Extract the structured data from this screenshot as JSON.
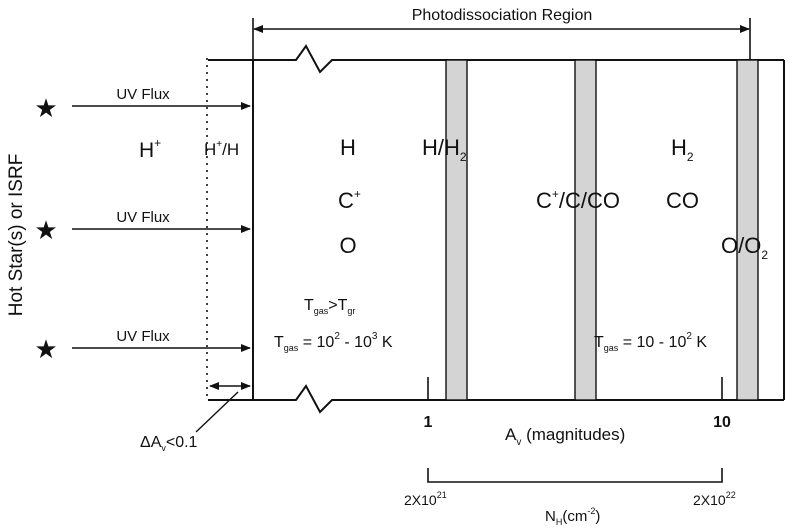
{
  "title": "Photodissociation Region",
  "side_label": "Hot Star(s) or ISRF",
  "uv_flux": [
    "UV Flux",
    "UV Flux",
    "UV Flux"
  ],
  "zone_hplus": {
    "base": "H",
    "sup": "+"
  },
  "zone_hplus_h": {
    "base": "H",
    "sup": "+",
    "tail": "/H"
  },
  "col1": {
    "h": "H",
    "c_base": "C",
    "c_sup": "+",
    "o": "O"
  },
  "h_h2": {
    "base": "H/H",
    "sub": "2"
  },
  "c_c_co": {
    "base": "C",
    "sup": "+",
    "tail": "/C/CO"
  },
  "h2": {
    "base": "H",
    "sub": "2"
  },
  "co": "CO",
  "o_o2": {
    "base": "O/O",
    "sub": "2"
  },
  "tgas_gt": {
    "t1": "T",
    "s1": "gas",
    "op": ">T",
    "s2": "gr"
  },
  "tgas_left": {
    "t": "T",
    "sub": "gas",
    "eq": " = 10",
    "e1": "2",
    "dash": " - 10",
    "e2": "3",
    "unit": " K"
  },
  "tgas_right": {
    "t": "T",
    "sub": "gas",
    "eq": " = 10 - 10",
    "e1": "2",
    "unit": " K"
  },
  "av_ticks": [
    "1",
    "10"
  ],
  "av_label": {
    "base": "A",
    "sub": "v",
    "tail": " (magnitudes)"
  },
  "nh_ticks": [
    {
      "base": "2X10",
      "sup": "21"
    },
    {
      "base": "2X10",
      "sup": "22"
    }
  ],
  "nh_label": {
    "base": "N",
    "sub": "H",
    "tail": "(cm",
    "sup": "-2",
    "close": ")"
  },
  "delta_av": {
    "base": "ΔA",
    "sub": "v",
    "tail": "<0.1"
  },
  "colors": {
    "ink": "#111111",
    "band_fill": "#d4d4d4"
  }
}
